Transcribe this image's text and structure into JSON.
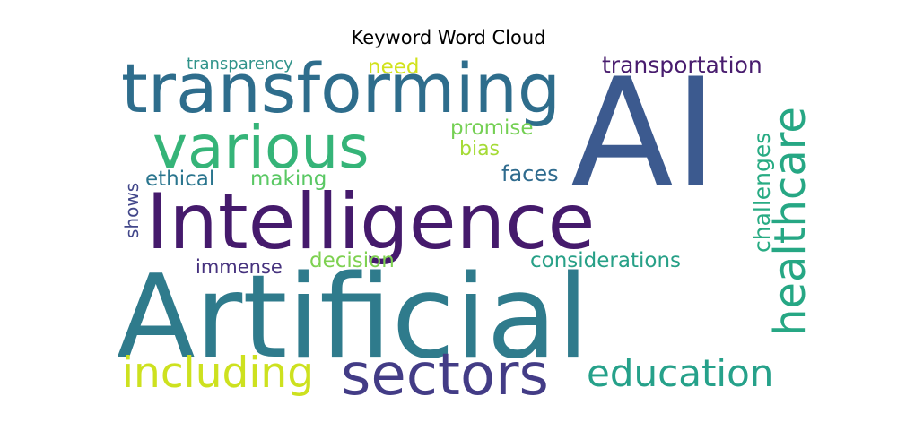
{
  "chart_data": {
    "type": "wordcloud",
    "title": "Keyword Word Cloud",
    "words": [
      {
        "text": "Artificial",
        "color": "#2f7b8c"
      },
      {
        "text": "AI",
        "color": "#3c5a8f"
      },
      {
        "text": "Intelligence",
        "color": "#451a6c"
      },
      {
        "text": "transforming",
        "color": "#2e6d8c"
      },
      {
        "text": "sectors",
        "color": "#433c86"
      },
      {
        "text": "various",
        "color": "#35b478"
      },
      {
        "text": "healthcare",
        "color": "#26a784"
      },
      {
        "text": "including",
        "color": "#cde11f"
      },
      {
        "text": "education",
        "color": "#26a18a"
      },
      {
        "text": "transportation",
        "color": "#481c6e"
      },
      {
        "text": "challenges",
        "color": "#28ab83"
      },
      {
        "text": "considerations",
        "color": "#27a087"
      },
      {
        "text": "decision",
        "color": "#7ed151"
      },
      {
        "text": "immense",
        "color": "#46327e"
      },
      {
        "text": "ethical",
        "color": "#2a758e"
      },
      {
        "text": "making",
        "color": "#5ac864"
      },
      {
        "text": "faces",
        "color": "#2f6b8e"
      },
      {
        "text": "promise",
        "color": "#75d054"
      },
      {
        "text": "bias",
        "color": "#a5db36"
      },
      {
        "text": "need",
        "color": "#d1e21b"
      },
      {
        "text": "transparency",
        "color": "#30938a"
      },
      {
        "text": "shows",
        "color": "#42478a"
      }
    ]
  }
}
